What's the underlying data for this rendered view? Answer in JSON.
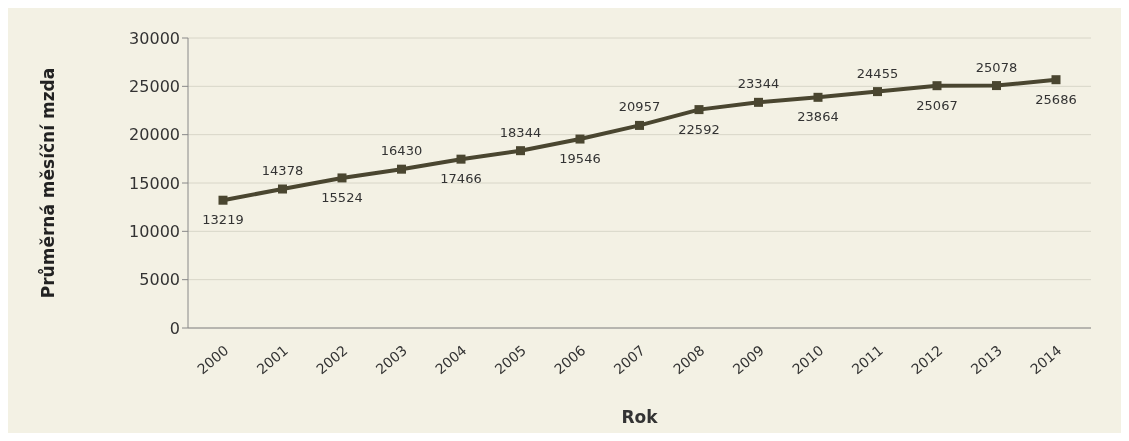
{
  "chart_data": {
    "type": "line",
    "xlabel": "Rok",
    "ylabel": "Průměrná měsíční mzda",
    "categories": [
      "2000",
      "2001",
      "2002",
      "2003",
      "2004",
      "2005",
      "2006",
      "2007",
      "2008",
      "2009",
      "2010",
      "2011",
      "2012",
      "2013",
      "2014"
    ],
    "series": [
      {
        "color": "#4a4630",
        "values": [
          13219,
          14378,
          15524,
          16430,
          17466,
          18344,
          19546,
          20957,
          22592,
          23344,
          23864,
          24455,
          25067,
          25078,
          25686
        ]
      }
    ],
    "ylim": [
      0,
      30000
    ],
    "yticks": [
      0,
      5000,
      10000,
      15000,
      20000,
      25000,
      30000
    ],
    "grid": "y",
    "marker": "square",
    "line_style": "solid",
    "data_labels": true,
    "legend": false
  }
}
